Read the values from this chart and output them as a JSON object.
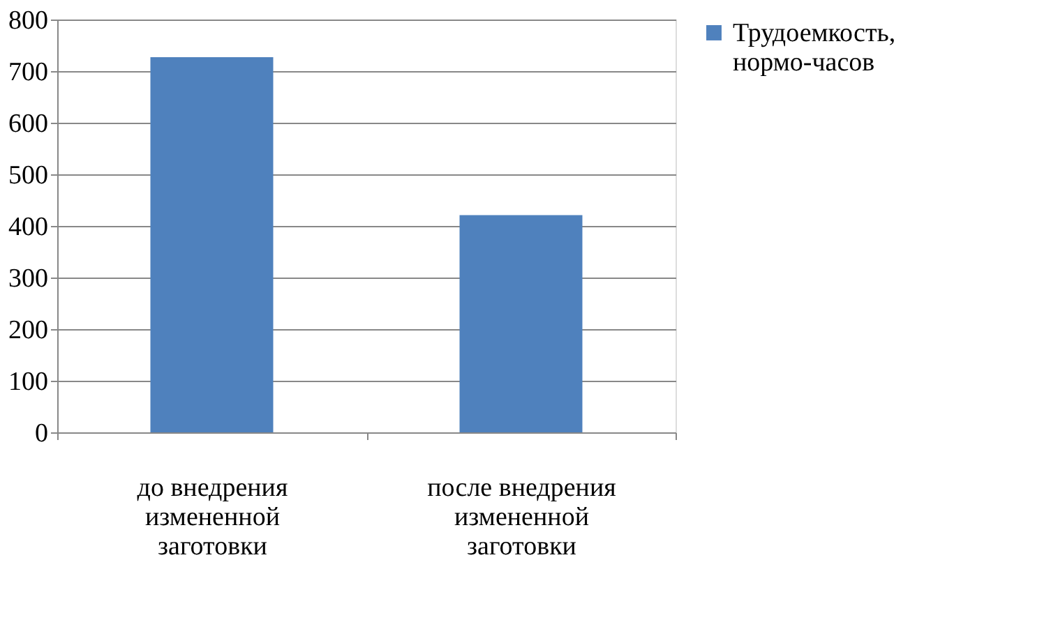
{
  "chart_data": {
    "type": "bar",
    "categories": [
      "до внедрения измененной заготовки",
      "после внедрения измененной заготовки"
    ],
    "series": [
      {
        "name": "Трудоемкость, нормо-часов",
        "color": "#4f81bd",
        "values": [
          727,
          421
        ]
      }
    ],
    "ylim": [
      0,
      800
    ],
    "yticks": [
      0,
      100,
      200,
      300,
      400,
      500,
      600,
      700,
      800
    ],
    "grid": "y",
    "legend": "right"
  }
}
